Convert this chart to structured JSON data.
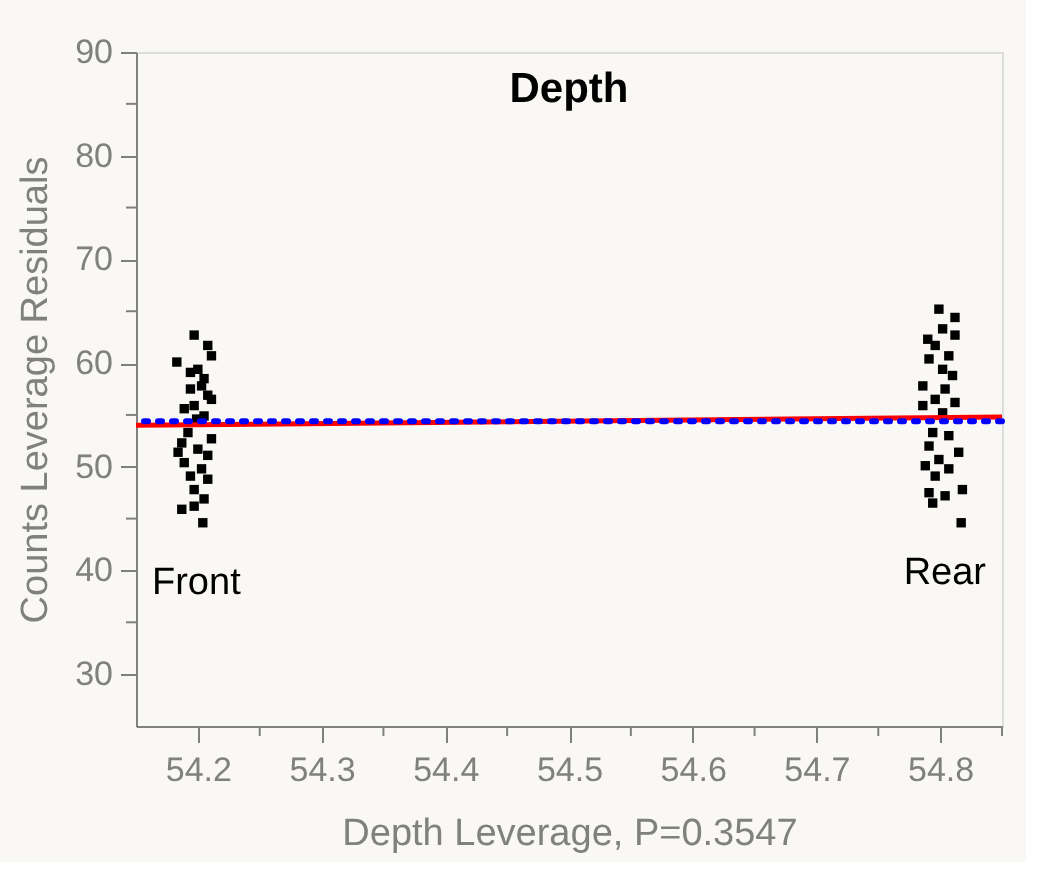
{
  "chart_data": {
    "type": "scatter",
    "title": "Depth",
    "xlabel": "Depth Leverage, P=0.3547",
    "ylabel": "Counts Leverage Residuals",
    "xlim": [
      54.15,
      54.85
    ],
    "ylim": [
      25,
      90
    ],
    "xticks": [
      54.2,
      {
        "value": 54.25,
        "label": null
      },
      54.3,
      {
        "value": 54.35,
        "label": null
      },
      54.4,
      {
        "value": 54.45,
        "label": null
      },
      54.5,
      {
        "value": 54.55,
        "label": null
      },
      54.6,
      {
        "value": 54.65,
        "label": null
      },
      54.7,
      {
        "value": 54.75,
        "label": null
      },
      54.8,
      {
        "value": 54.85,
        "label": null
      }
    ],
    "yticks": [
      30,
      {
        "value": 35,
        "label": null
      },
      40,
      {
        "value": 45,
        "label": null
      },
      50,
      {
        "value": 55,
        "label": null
      },
      60,
      {
        "value": 65,
        "label": null
      },
      70,
      {
        "value": 75,
        "label": null
      },
      80,
      {
        "value": 85,
        "label": null
      },
      90
    ],
    "grid": false,
    "marker": "square",
    "series": [
      {
        "color": "#000000",
        "x": [
          54.197,
          54.208,
          54.211,
          54.183,
          54.2,
          54.205,
          54.194,
          54.208,
          54.197,
          54.189,
          54.205,
          54.192,
          54.211,
          54.187,
          54.2,
          54.208,
          54.189,
          54.203,
          54.194,
          54.208,
          54.197,
          54.187,
          54.197,
          54.204,
          54.194,
          54.203,
          54.211,
          54.199,
          54.184,
          54.205,
          54.799,
          54.812,
          54.802,
          54.812,
          54.79,
          54.796,
          54.807,
          54.791,
          54.802,
          54.81,
          54.786,
          54.804,
          54.796,
          54.812,
          54.786,
          54.802,
          54.794,
          54.807,
          54.791,
          54.815,
          54.799,
          54.788,
          54.807,
          54.796,
          54.791,
          54.804,
          54.818,
          54.794,
          54.817
        ],
        "values": [
          62.7,
          61.7,
          60.7,
          60.1,
          59.4,
          58.5,
          57.5,
          56.9,
          55.9,
          55.6,
          54.9,
          53.3,
          52.7,
          52.3,
          51.7,
          51.1,
          50.4,
          49.8,
          49.1,
          48.8,
          47.8,
          45.9,
          46.2,
          44.6,
          59.1,
          57.8,
          56.5,
          54.6,
          51.4,
          46.9,
          65.2,
          64.4,
          63.3,
          62.7,
          62.3,
          61.7,
          60.7,
          60.4,
          59.4,
          58.8,
          57.8,
          57.5,
          56.5,
          56.2,
          55.9,
          55.2,
          53.3,
          53.0,
          52.0,
          51.4,
          50.7,
          50.1,
          49.8,
          49.1,
          47.5,
          47.2,
          47.8,
          46.5,
          44.6
        ]
      },
      {
        "type": "line",
        "color": "#ff0000",
        "line_style": "solid",
        "marker": "none",
        "x": [
          54.15,
          54.85
        ],
        "values": [
          54.0,
          54.8
        ]
      }
    ],
    "ref_lines": [
      {
        "axis": "y",
        "value": 54.4,
        "color": "#0000ff",
        "line_style": "dotted"
      }
    ],
    "annotations": [
      "Front",
      "Rear"
    ]
  }
}
